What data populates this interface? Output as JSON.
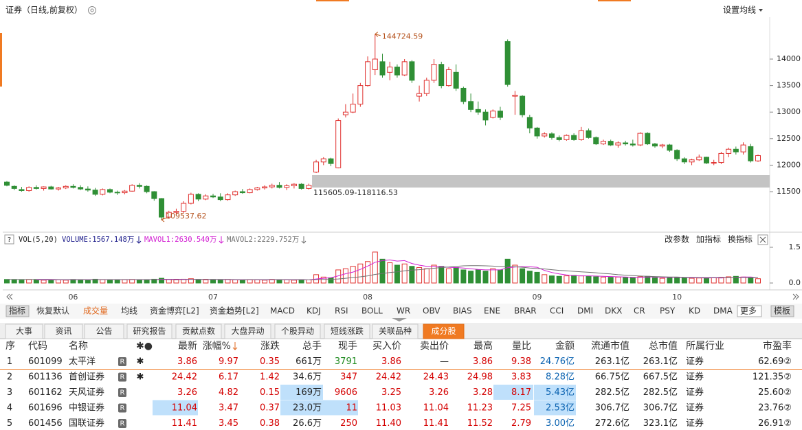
{
  "header": {
    "title": "证券（日线,前复权）",
    "ma_button": "设置均线"
  },
  "price_chart": {
    "type": "candlestick",
    "categories": [
      null,
      null,
      null,
      null,
      null,
      null,
      null,
      null,
      null,
      "06",
      null,
      null,
      null,
      null,
      null,
      null,
      null,
      null,
      null,
      null,
      null,
      null,
      null,
      null,
      null,
      null,
      null,
      null,
      "07",
      null,
      null,
      null,
      null,
      null,
      null,
      null,
      null,
      null,
      null,
      null,
      null,
      null,
      null,
      null,
      null,
      null,
      null,
      null,
      null,
      "08",
      null,
      null,
      null,
      null,
      null,
      null,
      null,
      null,
      null,
      null,
      null,
      null,
      null,
      null,
      null,
      null,
      null,
      null,
      null,
      null,
      null,
      null,
      "09",
      null,
      null,
      null,
      null,
      null,
      null,
      null,
      null,
      null,
      null,
      null,
      null,
      null,
      null,
      null,
      null,
      null,
      null,
      "10",
      null,
      null,
      null,
      null,
      null,
      null,
      null,
      null,
      null,
      null,
      null
    ],
    "candles": [
      [
        11680,
        11700,
        11600,
        11620
      ],
      [
        11600,
        11620,
        11530,
        11560
      ],
      [
        11540,
        11590,
        11500,
        11520
      ],
      [
        11520,
        11600,
        11500,
        11580
      ],
      [
        11580,
        11620,
        11540,
        11560
      ],
      [
        11560,
        11600,
        11520,
        11590
      ],
      [
        11590,
        11610,
        11540,
        11550
      ],
      [
        11550,
        11590,
        11520,
        11570
      ],
      [
        11570,
        11620,
        11550,
        11600
      ],
      [
        11600,
        11640,
        11560,
        11580
      ],
      [
        11580,
        11620,
        11530,
        11550
      ],
      [
        11550,
        11600,
        11500,
        11530
      ],
      [
        11530,
        11570,
        11420,
        11450
      ],
      [
        11450,
        11560,
        11430,
        11540
      ],
      [
        11540,
        11560,
        11470,
        11490
      ],
      [
        11490,
        11520,
        11440,
        11480
      ],
      [
        11480,
        11530,
        11450,
        11510
      ],
      [
        11510,
        11640,
        11500,
        11620
      ],
      [
        11620,
        11660,
        11560,
        11600
      ],
      [
        11600,
        11620,
        11470,
        11500
      ],
      [
        11500,
        11510,
        11330,
        11370
      ],
      [
        11370,
        11380,
        10970,
        11020
      ],
      [
        11020,
        11140,
        10990,
        11110
      ],
      [
        11110,
        11180,
        11050,
        11130
      ],
      [
        11130,
        11320,
        11100,
        11280
      ],
      [
        11280,
        11480,
        11260,
        11450
      ],
      [
        11450,
        11470,
        11320,
        11360
      ],
      [
        11360,
        11450,
        11340,
        11420
      ],
      [
        11420,
        11460,
        11380,
        11400
      ],
      [
        11400,
        11470,
        11320,
        11350
      ],
      [
        11350,
        11470,
        11330,
        11440
      ],
      [
        11440,
        11520,
        11420,
        11500
      ],
      [
        11500,
        11550,
        11460,
        11480
      ],
      [
        11480,
        11560,
        11470,
        11540
      ],
      [
        11540,
        11590,
        11520,
        11570
      ],
      [
        11570,
        11620,
        11540,
        11590
      ],
      [
        11590,
        11650,
        11560,
        11620
      ],
      [
        11620,
        11680,
        11560,
        11580
      ],
      [
        11580,
        11640,
        11530,
        11610
      ],
      [
        11610,
        11660,
        11560,
        11640
      ],
      [
        11640,
        11660,
        11540,
        11560
      ],
      [
        11560,
        11650,
        11540,
        11620
      ],
      [
        11870,
        12100,
        11850,
        12060
      ],
      [
        12060,
        12150,
        12000,
        12120
      ],
      [
        12120,
        12140,
        11980,
        12030
      ],
      [
        11950,
        12880,
        11940,
        12840
      ],
      [
        12950,
        13150,
        12900,
        13000
      ],
      [
        13000,
        13350,
        12980,
        13150
      ],
      [
        13150,
        13550,
        13100,
        13500
      ],
      [
        13500,
        14050,
        13480,
        13950
      ],
      [
        13800,
        14470,
        13700,
        14000
      ],
      [
        13950,
        14100,
        13650,
        13700
      ],
      [
        13750,
        13950,
        13600,
        13850
      ],
      [
        13850,
        13900,
        13650,
        13700
      ],
      [
        13700,
        14000,
        13680,
        13950
      ],
      [
        13950,
        13980,
        13550,
        13600
      ],
      [
        13300,
        13500,
        13200,
        13350
      ],
      [
        13350,
        13650,
        13300,
        13600
      ],
      [
        13600,
        14000,
        13550,
        13900
      ],
      [
        13900,
        13950,
        13450,
        13500
      ],
      [
        13500,
        13850,
        13480,
        13800
      ],
      [
        13750,
        13900,
        13400,
        13450
      ],
      [
        13450,
        13480,
        13150,
        13200
      ],
      [
        13200,
        13350,
        13000,
        13050
      ],
      [
        13050,
        13200,
        12950,
        13000
      ],
      [
        13000,
        13050,
        12750,
        12850
      ],
      [
        12900,
        13050,
        12880,
        13020
      ],
      [
        13020,
        13100,
        12850,
        12900
      ],
      [
        14330,
        14370,
        13480,
        13520
      ],
      [
        13300,
        13400,
        12950,
        13320
      ],
      [
        13300,
        13320,
        12900,
        12950
      ],
      [
        12900,
        12950,
        12600,
        12700
      ],
      [
        12700,
        12720,
        12500,
        12550
      ],
      [
        12550,
        12620,
        12520,
        12590
      ],
      [
        12590,
        12620,
        12480,
        12520
      ],
      [
        12520,
        12560,
        12450,
        12480
      ],
      [
        12480,
        12580,
        12460,
        12560
      ],
      [
        12560,
        12600,
        12460,
        12480
      ],
      [
        12480,
        12720,
        12460,
        12650
      ],
      [
        12650,
        12690,
        12500,
        12520
      ],
      [
        12520,
        12540,
        12380,
        12400
      ],
      [
        12400,
        12480,
        12380,
        12450
      ],
      [
        12450,
        12480,
        12360,
        12380
      ],
      [
        12380,
        12450,
        12330,
        12420
      ],
      [
        12420,
        12460,
        12370,
        12400
      ],
      [
        12400,
        12480,
        12350,
        12380
      ],
      [
        12380,
        12620,
        12360,
        12600
      ],
      [
        12600,
        12620,
        12380,
        12400
      ],
      [
        12400,
        12420,
        12330,
        12360
      ],
      [
        12360,
        12400,
        12320,
        12380
      ],
      [
        12380,
        12400,
        12250,
        12280
      ],
      [
        12280,
        12300,
        12080,
        12120
      ],
      [
        12120,
        12150,
        12020,
        12060
      ],
      [
        12060,
        12120,
        12000,
        12100
      ],
      [
        12100,
        12200,
        12080,
        12150
      ],
      [
        12150,
        12160,
        12020,
        12040
      ],
      [
        12040,
        12100,
        12000,
        12050
      ],
      [
        12050,
        12250,
        12020,
        12220
      ],
      [
        12220,
        12330,
        12150,
        12300
      ],
      [
        12300,
        12350,
        12200,
        12250
      ],
      [
        12250,
        12430,
        12200,
        12380
      ],
      [
        12350,
        12400,
        12050,
        12080
      ],
      [
        12080,
        12200,
        12060,
        12180
      ]
    ],
    "ylim": [
      10775,
      14790
    ],
    "yticks": [
      11500,
      12000,
      12500,
      13000,
      13500,
      14000
    ],
    "up_color": "#e0302e",
    "down_color": "#2f8f35",
    "high_label": "144724.59",
    "low_label": "109537.62",
    "band": [
      11578,
      11811
    ],
    "band_label": "115605.09-118116.53",
    "band_color": "#c4c4c4"
  },
  "volume_chart": {
    "type": "bar",
    "title": "VOL(5,20)",
    "volume_label": "VOLUME:1567.148万",
    "values": [
      0.15,
      0.13,
      0.12,
      0.14,
      0.13,
      0.12,
      0.14,
      0.13,
      0.12,
      0.15,
      0.14,
      0.13,
      0.16,
      0.14,
      0.13,
      0.12,
      0.14,
      0.15,
      0.13,
      0.14,
      0.16,
      0.2,
      0.15,
      0.13,
      0.16,
      0.18,
      0.14,
      0.13,
      0.12,
      0.14,
      0.15,
      0.13,
      0.12,
      0.14,
      0.13,
      0.12,
      0.15,
      0.14,
      0.13,
      0.12,
      0.14,
      0.13,
      0.35,
      0.25,
      0.22,
      0.55,
      0.6,
      0.7,
      0.8,
      0.9,
      1.3,
      1.0,
      0.85,
      0.75,
      0.8,
      0.7,
      0.65,
      0.6,
      0.75,
      0.7,
      0.6,
      0.65,
      0.55,
      0.5,
      0.55,
      0.5,
      0.6,
      0.55,
      1.0,
      0.75,
      0.6,
      0.5,
      0.45,
      0.35,
      0.3,
      0.28,
      0.3,
      0.32,
      0.3,
      0.28,
      0.26,
      0.25,
      0.24,
      0.25,
      0.23,
      0.22,
      0.26,
      0.28,
      0.22,
      0.2,
      0.22,
      0.24,
      0.22,
      0.2,
      0.21,
      0.2,
      0.22,
      0.24,
      0.26,
      0.28,
      0.25,
      0.2,
      0.18
    ],
    "series": [
      {
        "name": "MAVOL1:2630.540万",
        "color": "#d21ed2",
        "values": [
          null,
          null,
          null,
          null,
          0.13,
          0.13,
          0.13,
          0.13,
          0.13,
          0.13,
          0.14,
          0.13,
          0.14,
          0.14,
          0.14,
          0.14,
          0.14,
          0.14,
          0.14,
          0.14,
          0.14,
          0.16,
          0.16,
          0.16,
          0.16,
          0.16,
          0.15,
          0.15,
          0.15,
          0.14,
          0.14,
          0.13,
          0.13,
          0.14,
          0.13,
          0.13,
          0.13,
          0.14,
          0.13,
          0.13,
          0.14,
          0.13,
          0.17,
          0.2,
          0.22,
          0.3,
          0.39,
          0.46,
          0.57,
          0.71,
          0.87,
          0.94,
          0.97,
          0.92,
          0.94,
          0.82,
          0.75,
          0.7,
          0.7,
          0.68,
          0.66,
          0.65,
          0.63,
          0.6,
          0.57,
          0.55,
          0.55,
          0.55,
          0.64,
          0.67,
          0.69,
          0.68,
          0.66,
          0.53,
          0.44,
          0.38,
          0.34,
          0.31,
          0.3,
          0.3,
          0.29,
          0.28,
          0.27,
          0.26,
          0.25,
          0.24,
          0.24,
          0.25,
          0.25,
          0.24,
          0.24,
          0.24,
          0.23,
          0.22,
          0.22,
          0.21,
          0.22,
          0.21,
          0.23,
          0.24,
          0.25,
          0.25,
          0.23
        ]
      },
      {
        "name": "MAVOL2:2229.752万",
        "color": "#707070",
        "values": [
          0.15,
          0.15,
          0.15,
          0.15,
          0.15,
          0.15,
          0.15,
          0.14,
          0.14,
          0.14,
          0.14,
          0.14,
          0.14,
          0.14,
          0.14,
          0.14,
          0.14,
          0.14,
          0.14,
          0.14,
          0.14,
          0.14,
          0.14,
          0.14,
          0.14,
          0.15,
          0.15,
          0.15,
          0.15,
          0.15,
          0.15,
          0.14,
          0.14,
          0.14,
          0.14,
          0.14,
          0.14,
          0.14,
          0.14,
          0.14,
          0.14,
          0.13,
          0.14,
          0.15,
          0.15,
          0.17,
          0.2,
          0.23,
          0.26,
          0.3,
          0.36,
          0.4,
          0.44,
          0.47,
          0.51,
          0.54,
          0.56,
          0.59,
          0.62,
          0.65,
          0.67,
          0.7,
          0.72,
          0.73,
          0.73,
          0.72,
          0.71,
          0.69,
          0.69,
          0.68,
          0.66,
          0.63,
          0.61,
          0.59,
          0.56,
          0.53,
          0.51,
          0.49,
          0.47,
          0.45,
          0.43,
          0.4,
          0.38,
          0.35,
          0.33,
          0.31,
          0.29,
          0.28,
          0.27,
          0.26,
          0.25,
          0.25,
          0.24,
          0.24,
          0.23,
          0.23,
          0.23,
          0.23,
          0.23,
          0.23,
          0.23,
          0.23,
          0.23
        ]
      }
    ],
    "ylim": [
      0,
      1.5
    ],
    "yticks": [
      {
        "value": 0,
        "label": "0.0"
      },
      1.5
    ],
    "buttons": [
      "改参数",
      "加指标",
      "换指标"
    ]
  },
  "indicator_tabs": {
    "items": [
      "指标",
      "恢复默认",
      "成交量",
      "均线",
      "资金博弈[L2]",
      "资金趋势[L2]",
      "MACD",
      "KDJ",
      "RSI",
      "BOLL",
      "WR",
      "OBV",
      "BIAS",
      "ENE",
      "BRAR",
      "CCI",
      "DMI",
      "DKX",
      "CR",
      "PSY",
      "KD",
      "DMA",
      "更多",
      "模板"
    ],
    "active": 2
  },
  "info_tabs": {
    "items": [
      "大事",
      "资讯",
      "公告",
      "研究报告",
      "贡献点数",
      "大盘异动",
      "个股异动",
      "短线涨跌",
      "关联品种",
      "成分股"
    ],
    "active": 9
  },
  "table": {
    "columns": [
      "序",
      "代码",
      "名称",
      "✱●",
      "最新",
      "涨幅%",
      "涨跌",
      "总手",
      "现手",
      "买入价",
      "卖出价",
      "最高",
      "量比",
      "金额",
      "流通市值",
      "总市值",
      "所属行业",
      "市盈率"
    ],
    "rows": [
      [
        "1",
        "601099",
        "太平洋",
        "R",
        "✱",
        "3.86",
        "9.97",
        "0.35",
        "661万",
        "3791",
        "3.86",
        "—",
        "3.86",
        "9.38",
        "24.76亿",
        "263.1亿",
        "263.1亿",
        "证券",
        "62.69②"
      ],
      [
        "2",
        "601136",
        "首创证券",
        "R",
        "✱",
        "24.42",
        "6.17",
        "1.42",
        "34.6万",
        "347",
        "24.42",
        "24.43",
        "24.98",
        "3.83",
        "8.28亿",
        "66.75亿",
        "667.5亿",
        "证券",
        "121.35②"
      ],
      [
        "3",
        "601162",
        "天风证券",
        "R",
        null,
        "3.26",
        "4.82",
        "0.15",
        "169万",
        "9606",
        "3.25",
        "3.26",
        "3.28",
        "8.17",
        "5.43亿",
        "282.5亿",
        "282.5亿",
        "证券",
        "25.60②"
      ],
      [
        "4",
        "601696",
        "中银证券",
        "R",
        null,
        "11.04",
        "3.47",
        "0.37",
        "23.0万",
        "11",
        "11.03",
        "11.04",
        "11.23",
        "7.25",
        "2.53亿",
        "306.7亿",
        "306.7亿",
        "证券",
        "23.76②"
      ],
      [
        "5",
        "601456",
        "国联证券",
        "R",
        null,
        "11.41",
        "3.45",
        "0.38",
        "26.6万",
        "250",
        "11.40",
        "11.41",
        "11.52",
        "2.79",
        "3.00亿",
        "272.6亿",
        "323.1亿",
        "证券",
        "26.91②"
      ]
    ]
  }
}
